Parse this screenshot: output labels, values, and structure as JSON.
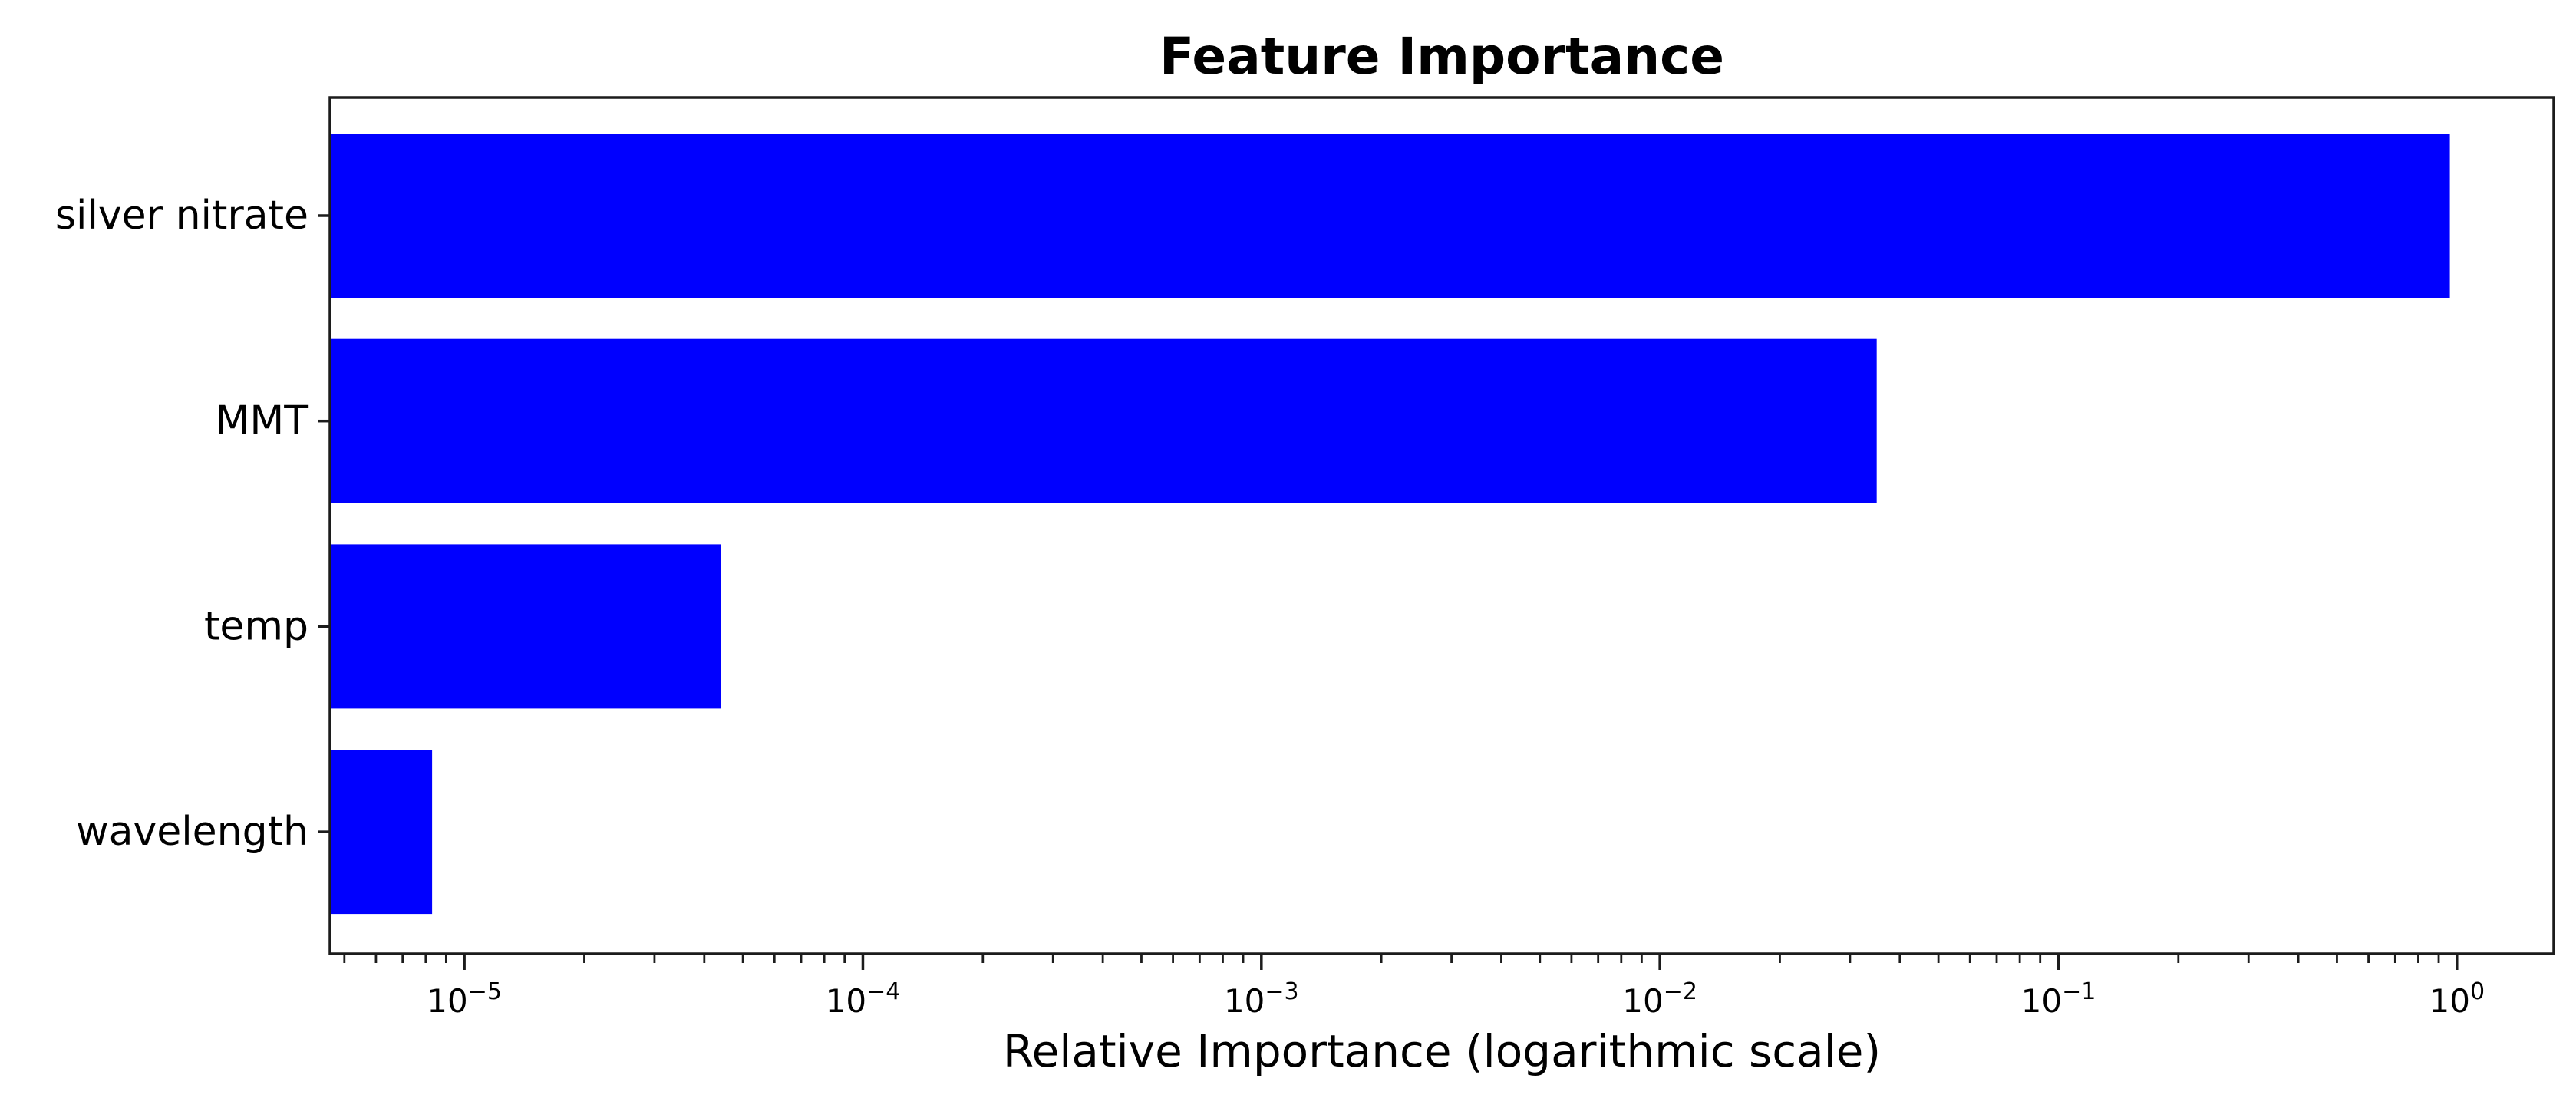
{
  "chart_data": {
    "type": "bar",
    "orientation": "horizontal",
    "title": "Feature Importance",
    "xlabel": "Relative Importance (logarithmic scale)",
    "ylabel": "",
    "categories": [
      "silver nitrate",
      "MMT",
      "temp",
      "wavelength"
    ],
    "values": [
      0.96,
      0.035,
      4.4e-05,
      8.3e-06
    ],
    "xscale": "log",
    "xlim": [
      4.6e-06,
      1.75
    ],
    "x_tick_base": "10",
    "x_tick_exponents": [
      -5,
      -4,
      -3,
      -2,
      -1,
      0
    ],
    "grid": "off",
    "legend": "none",
    "bar_color": "#0000ff",
    "axis_color": "#1c1c1c",
    "text_color": "#000000",
    "background_color": "#ffffff"
  }
}
